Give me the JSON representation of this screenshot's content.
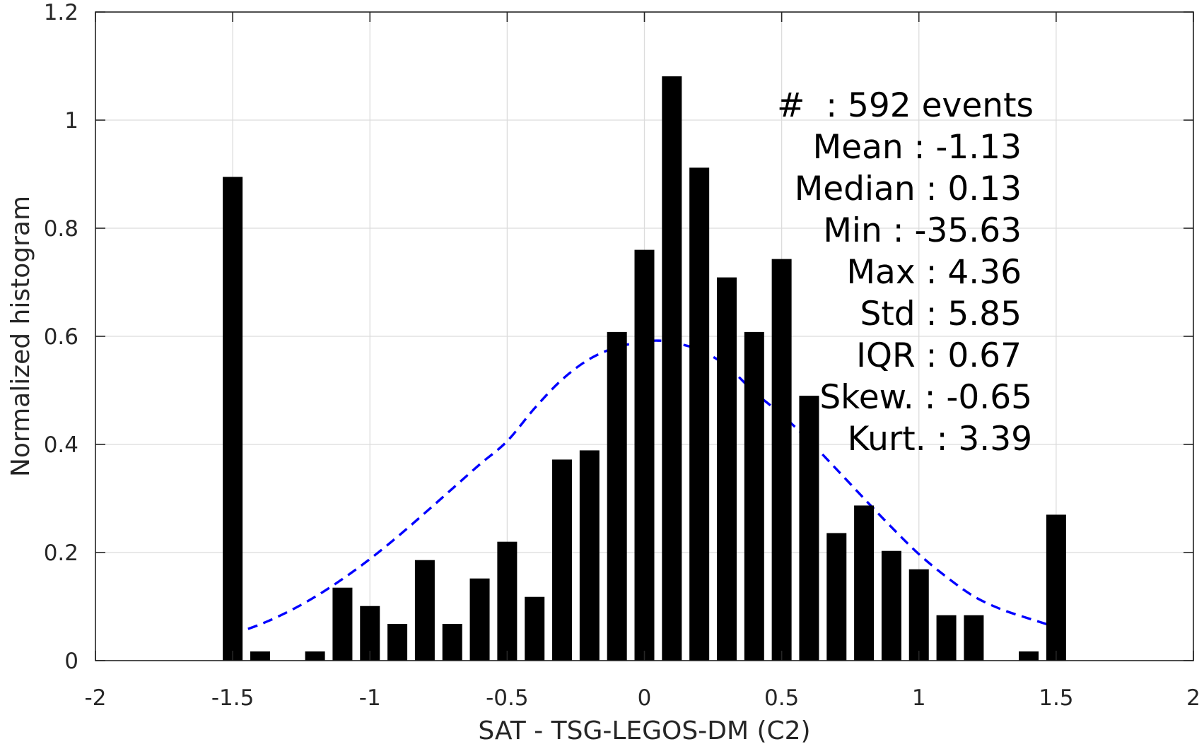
{
  "chart_data": {
    "type": "bar",
    "xlabel": "SAT - TSG-LEGOS-DM (C2)",
    "ylabel": "Normalized histogram",
    "xlim": [
      -2,
      2
    ],
    "ylim": [
      0,
      1.2
    ],
    "x_ticks": [
      -2,
      -1.5,
      -1,
      -0.5,
      0,
      0.5,
      1,
      1.5,
      2
    ],
    "x_tick_labels": [
      "-2",
      "-1.5",
      "-1",
      "-0.5",
      "0",
      "0.5",
      "1",
      "1.5",
      "2"
    ],
    "y_ticks": [
      0,
      0.2,
      0.4,
      0.6,
      0.8,
      1,
      1.2
    ],
    "y_tick_labels": [
      "0",
      "0.2",
      "0.4",
      "0.6",
      "0.8",
      "1",
      "1.2"
    ],
    "grid": true,
    "bar_color": "#000000",
    "bars": {
      "x": [
        -1.5,
        -1.4,
        -1.2,
        -1.1,
        -1.0,
        -0.9,
        -0.8,
        -0.7,
        -0.6,
        -0.5,
        -0.4,
        -0.3,
        -0.2,
        -0.1,
        0.0,
        0.1,
        0.2,
        0.3,
        0.4,
        0.5,
        0.6,
        0.7,
        0.8,
        0.9,
        1.0,
        1.1,
        1.2,
        1.4,
        1.5
      ],
      "values": [
        0.895,
        0.017,
        0.017,
        0.135,
        0.101,
        0.068,
        0.186,
        0.068,
        0.152,
        0.22,
        0.118,
        0.372,
        0.389,
        0.608,
        0.76,
        1.081,
        0.912,
        0.709,
        0.608,
        0.743,
        0.49,
        0.236,
        0.287,
        0.203,
        0.169,
        0.084,
        0.084,
        0.017,
        0.27
      ]
    },
    "fit_curve": {
      "style": "dashed",
      "color": "#0000ff",
      "x": [
        -1.5,
        -1.4,
        -1.3,
        -1.2,
        -1.1,
        -1.0,
        -0.9,
        -0.8,
        -0.7,
        -0.6,
        -0.5,
        -0.4,
        -0.3,
        -0.2,
        -0.1,
        0.0,
        0.05,
        0.1,
        0.2,
        0.3,
        0.4,
        0.5,
        0.6,
        0.7,
        0.8,
        0.9,
        1.0,
        1.1,
        1.2,
        1.3,
        1.4,
        1.5
      ],
      "values": [
        0.049,
        0.067,
        0.09,
        0.118,
        0.151,
        0.188,
        0.229,
        0.273,
        0.318,
        0.363,
        0.406,
        0.467,
        0.52,
        0.558,
        0.58,
        0.59,
        0.592,
        0.589,
        0.575,
        0.545,
        0.497,
        0.455,
        0.407,
        0.354,
        0.3,
        0.247,
        0.197,
        0.155,
        0.119,
        0.095,
        0.078,
        0.062
      ]
    },
    "annotations": [
      "#  : 592 events",
      "Mean : -1.13",
      "Median : 0.13",
      "Min : -35.63",
      "Max : 4.36",
      "Std : 5.85",
      "IQR : 0.67",
      "Skew. : -0.65",
      "Kurt. : 3.39"
    ]
  }
}
